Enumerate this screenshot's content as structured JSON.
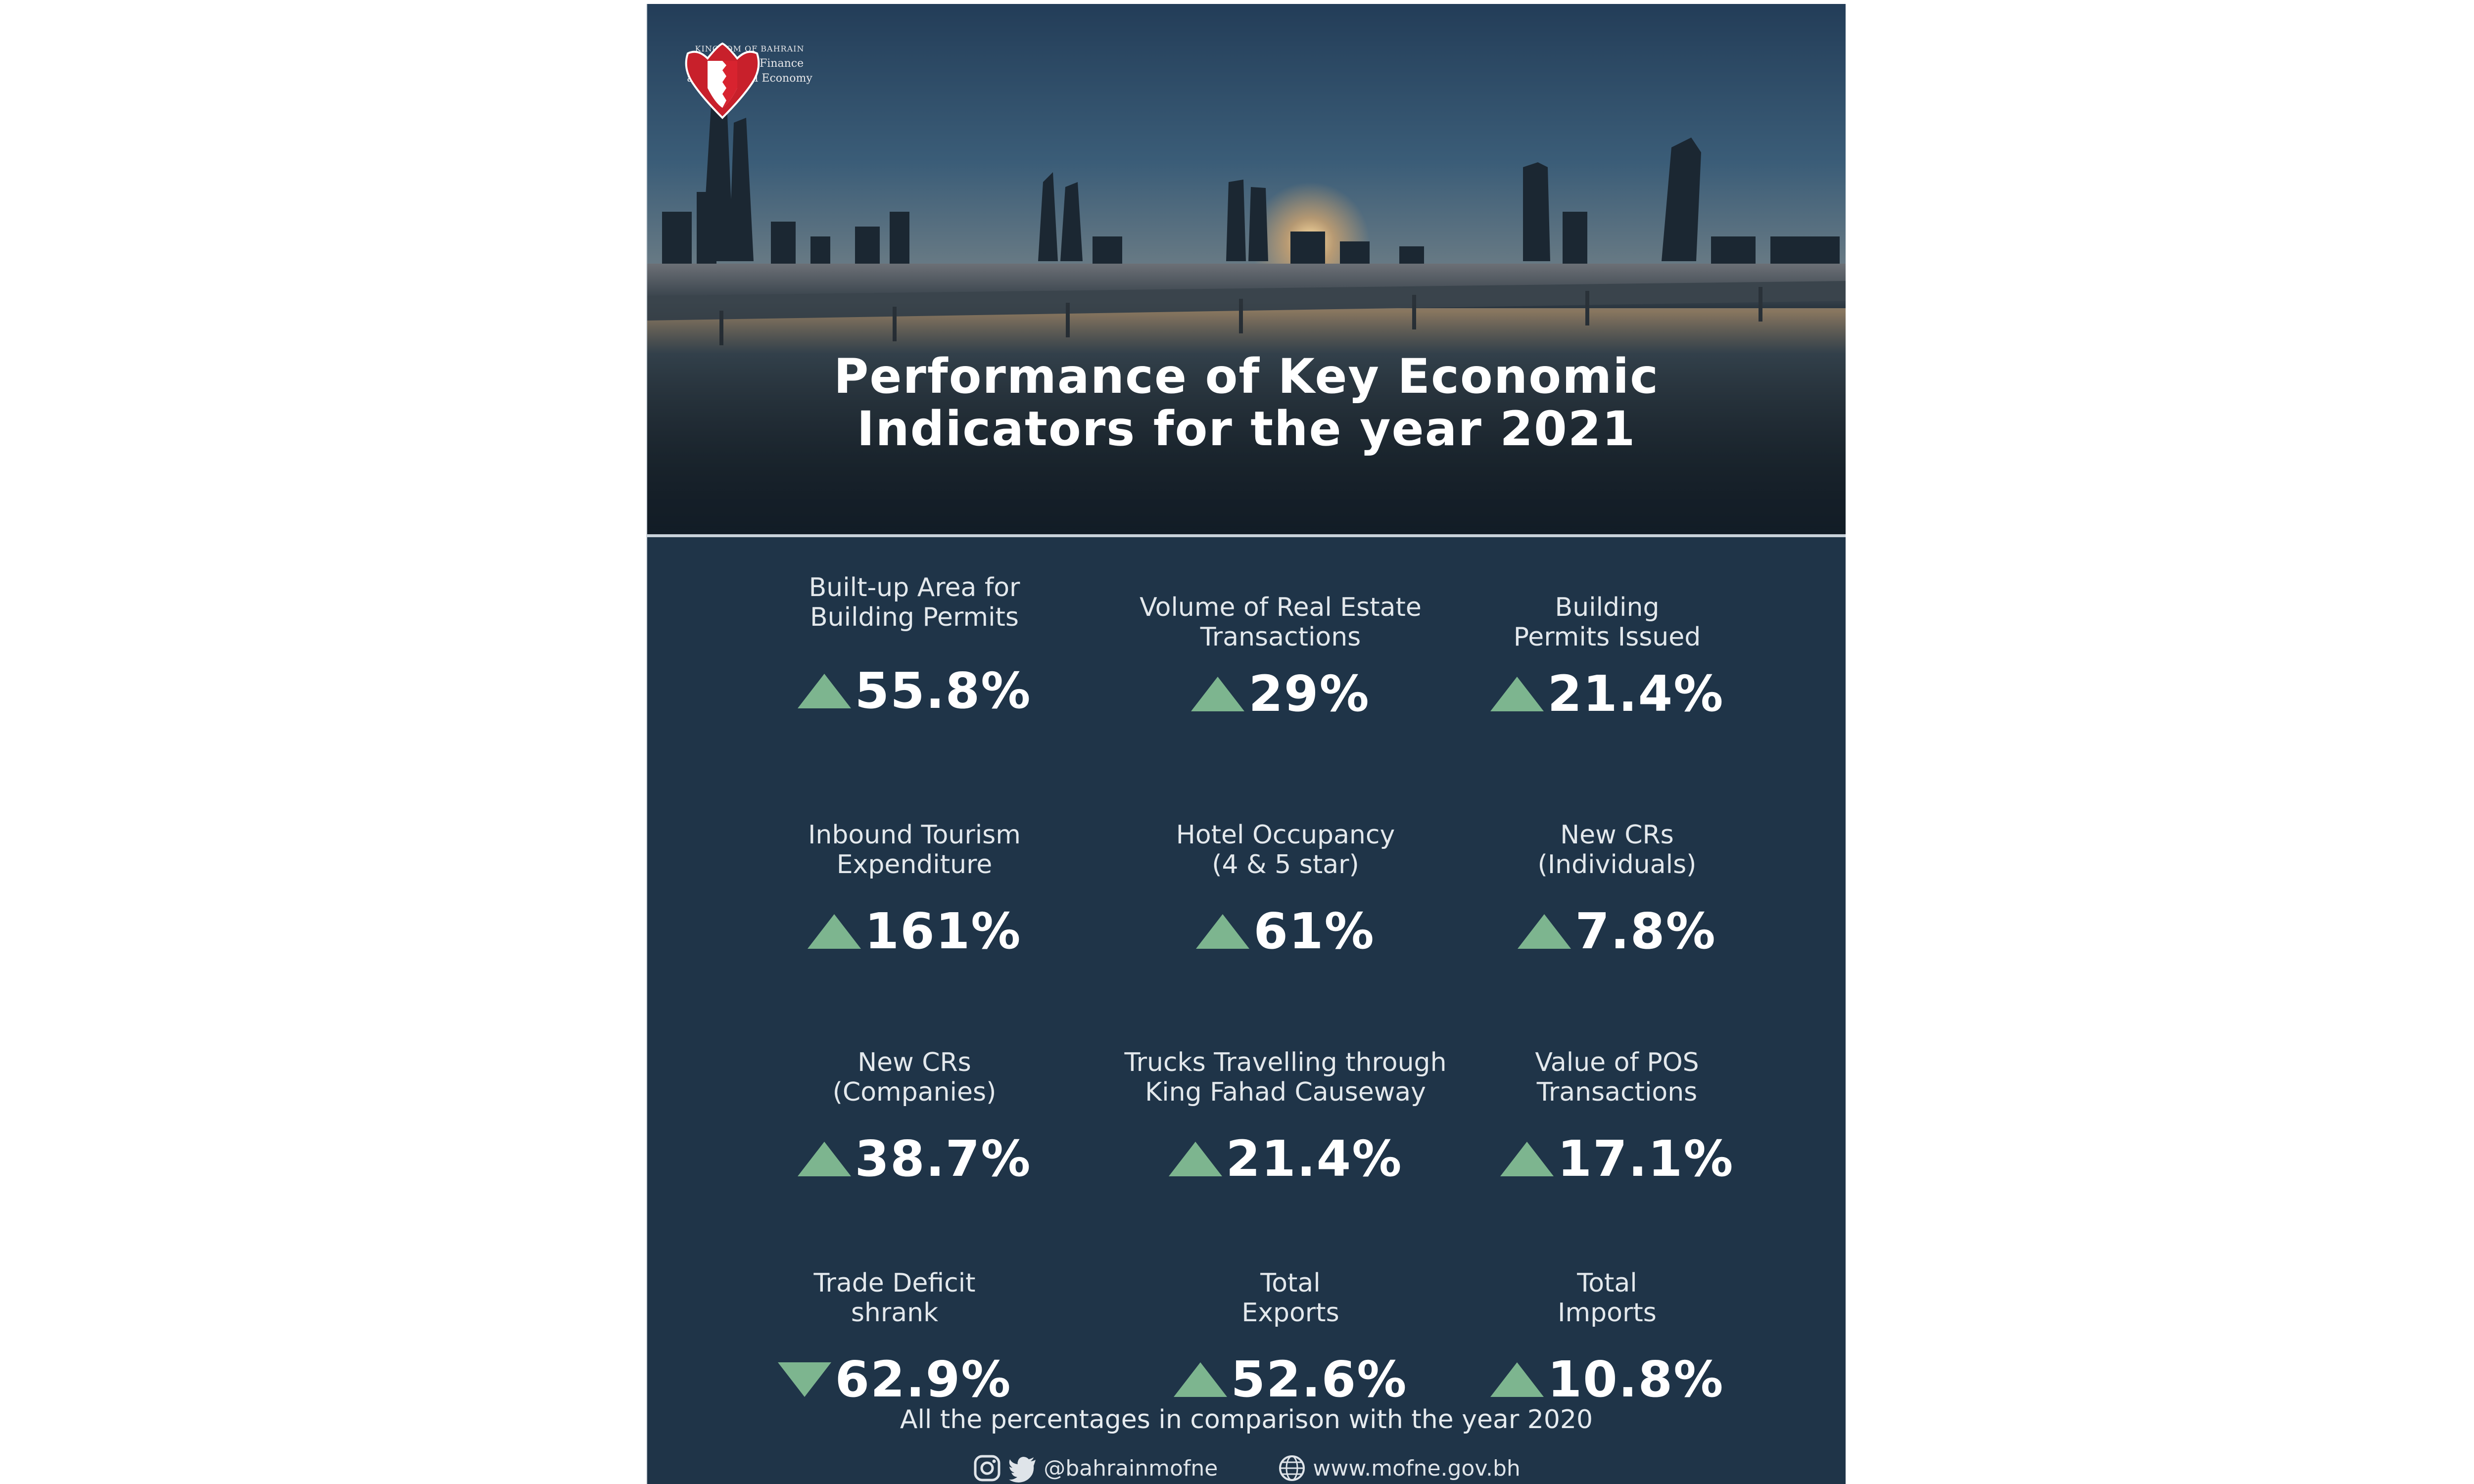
{
  "header": {
    "logo_lines": [
      "KINGDOM OF BAHRAIN",
      "Ministry of Finance",
      "and National Economy"
    ],
    "title_line1": "Performance of Key Economic",
    "title_line2": "Indicators for the year 2021"
  },
  "indicators": [
    {
      "label": "Built-up Area for\nBuilding Permits",
      "value": "55.8%",
      "direction": "up"
    },
    {
      "label": "Volume of Real Estate\nTransactions",
      "value": "29%",
      "direction": "up"
    },
    {
      "label": "Building\nPermits Issued",
      "value": "21.4%",
      "direction": "up"
    },
    {
      "label": "Inbound Tourism\nExpenditure",
      "value": "161%",
      "direction": "up"
    },
    {
      "label": "Hotel Occupancy\n(4 & 5 star)",
      "value": "61%",
      "direction": "up"
    },
    {
      "label": "New CRs\n(Individuals)",
      "value": "7.8%",
      "direction": "up"
    },
    {
      "label": "New CRs\n(Companies)",
      "value": "38.7%",
      "direction": "up"
    },
    {
      "label": "Trucks Travelling through\nKing Fahad Causeway",
      "value": "21.4%",
      "direction": "up"
    },
    {
      "label": "Value of POS\nTransactions",
      "value": "17.1%",
      "direction": "up"
    },
    {
      "label": "Trade Deficit\nshrank",
      "value": "62.9%",
      "direction": "down"
    },
    {
      "label": "Total\nExports",
      "value": "52.6%",
      "direction": "up"
    },
    {
      "label": "Total\nImports",
      "value": "10.8%",
      "direction": "up"
    }
  ],
  "footnote": "All the percentages in comparison with the year 2020",
  "socials": {
    "handle": "@bahrainmofne",
    "website": "www.mofne.gov.bh"
  },
  "colors": {
    "background": "#1f3448",
    "arrow": "#7db58f",
    "text": "#ffffff"
  },
  "icons": [
    "bahrain-emblem-icon",
    "instagram-icon",
    "twitter-icon",
    "globe-icon"
  ]
}
